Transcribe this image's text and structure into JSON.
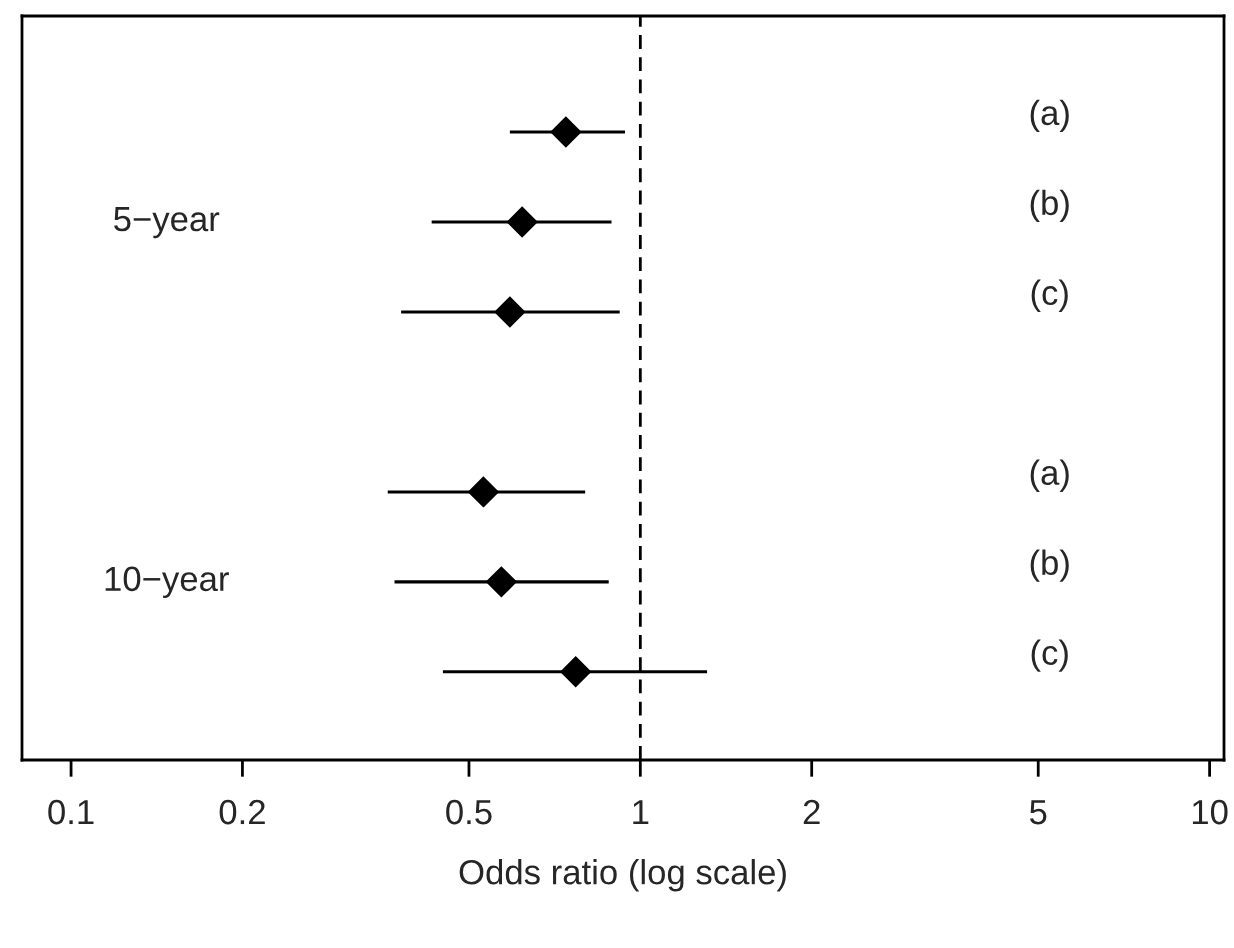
{
  "chart_data": {
    "type": "scatter",
    "orientation": "horizontal",
    "xlabel": "Odds ratio (log scale)",
    "categories": [
      "(a)",
      "(b)",
      "(c)",
      null,
      "(a)",
      "(b)",
      "(c)"
    ],
    "values": [
      0.74,
      0.62,
      0.59,
      null,
      0.53,
      0.57,
      0.77
    ],
    "errors": [
      [
        0.59,
        0.94
      ],
      [
        0.43,
        0.89
      ],
      [
        0.38,
        0.92
      ],
      null,
      [
        0.36,
        0.8
      ],
      [
        0.37,
        0.88
      ],
      [
        0.45,
        1.31
      ]
    ],
    "color": "#000000",
    "marker": "diamond",
    "log": "x",
    "xlim": [
      0.082,
      10.6
    ],
    "xticks": [
      0.1,
      0.2,
      0.5,
      1,
      2,
      5,
      10
    ],
    "ref_lines": [
      {
        "axis": "x",
        "value": 1,
        "line_style": "dashed",
        "color": "#000000"
      }
    ],
    "annotations": [
      "5−year",
      "10−year"
    ],
    "grid": false
  }
}
